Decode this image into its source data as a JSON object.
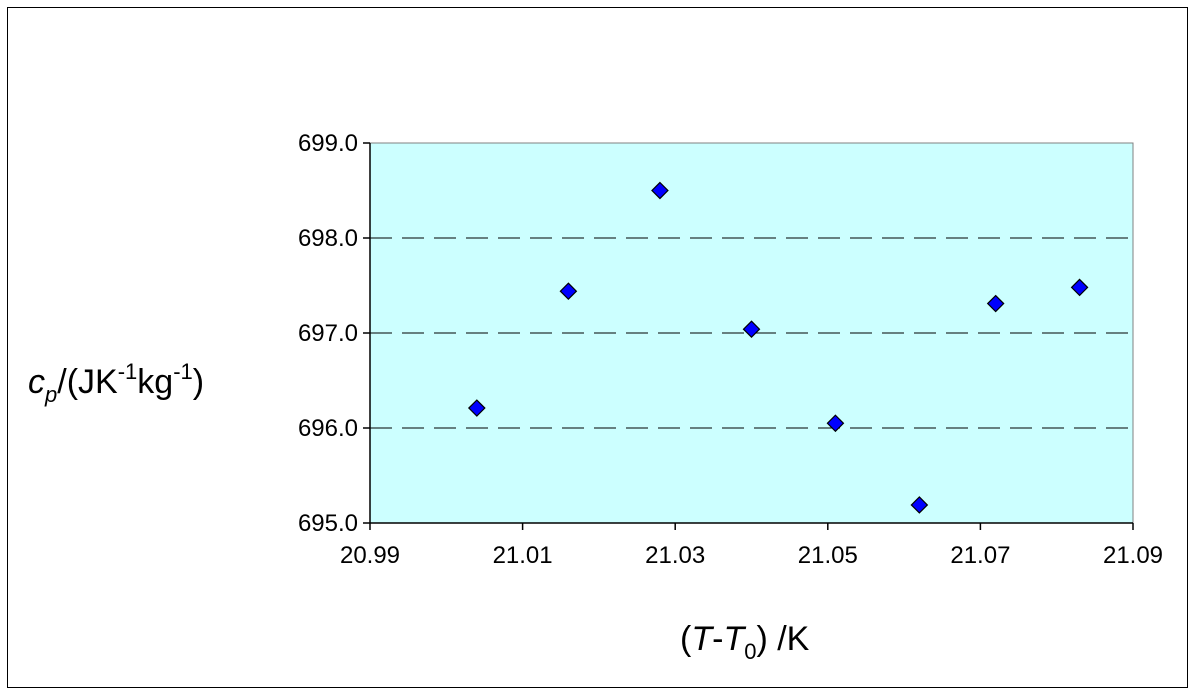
{
  "chart_data": {
    "type": "scatter",
    "title": "",
    "xlabel": {
      "parts": [
        {
          "text": "(",
          "style": "normal"
        },
        {
          "text": "T",
          "style": "italic"
        },
        {
          "text": "-",
          "style": "normal"
        },
        {
          "text": "T",
          "style": "italic"
        },
        {
          "text": "0",
          "style": "sub"
        },
        {
          "text": ") /K",
          "style": "normal"
        }
      ]
    },
    "ylabel": {
      "parts": [
        {
          "text": "c",
          "style": "italic"
        },
        {
          "text": "p",
          "style": "italic-sub"
        },
        {
          "text": "/(JK",
          "style": "normal"
        },
        {
          "text": "-1",
          "style": "sup"
        },
        {
          "text": "kg",
          "style": "normal"
        },
        {
          "text": "-1",
          "style": "sup"
        },
        {
          "text": ")",
          "style": "normal"
        }
      ]
    },
    "xlim": [
      20.99,
      21.09
    ],
    "ylim": [
      695.0,
      699.0
    ],
    "x_ticks": [
      "20.99",
      "21.01",
      "21.03",
      "21.05",
      "21.07",
      "21.09"
    ],
    "y_ticks": [
      "695.0",
      "696.0",
      "697.0",
      "698.0",
      "699.0"
    ],
    "grid": "horizontal-dashed",
    "plot_background": "#ccffff",
    "marker_color": "#0000ff",
    "marker_shape": "diamond",
    "points": [
      {
        "x": 21.004,
        "y": 696.21
      },
      {
        "x": 21.016,
        "y": 697.44
      },
      {
        "x": 21.028,
        "y": 698.5
      },
      {
        "x": 21.04,
        "y": 697.04
      },
      {
        "x": 21.051,
        "y": 696.05
      },
      {
        "x": 21.062,
        "y": 695.19
      },
      {
        "x": 21.072,
        "y": 697.31
      },
      {
        "x": 21.083,
        "y": 697.48
      }
    ]
  }
}
